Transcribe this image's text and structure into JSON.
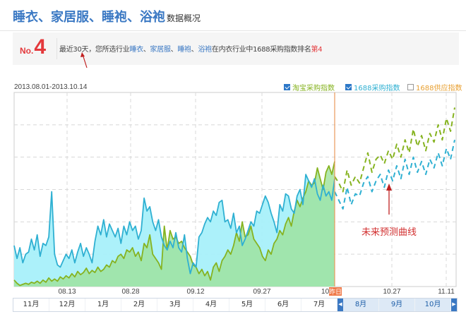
{
  "title": {
    "main": "睡衣、家居服、睡袍、浴袍",
    "suffix": "数据概况"
  },
  "rank": {
    "no_label": "No.",
    "number": "4",
    "text_prefix": "最近30天，您所选行业",
    "cats": [
      "睡衣",
      "家居服",
      "睡袍",
      "浴袍"
    ],
    "text_mid": "在内衣行业中1688采购指数排名",
    "rank_text": "第4"
  },
  "date_range": "2013.08.01-2013.10.14",
  "legend": [
    {
      "label": "淘宝采购指数",
      "checked": true,
      "color": "#86b320"
    },
    {
      "label": "1688采购指数",
      "checked": true,
      "color": "#2fb0d2"
    },
    {
      "label": "1688供应指数",
      "checked": false,
      "color": "#e8a032"
    }
  ],
  "annotation": "未来预测曲线",
  "colors": {
    "green_line": "#86b320",
    "green_fill": "#9ee29a",
    "blue_line": "#2fb0d2",
    "blue_fill": "#a8f0fa",
    "today_line": "#e89a5c",
    "grid": "#d8d8d8"
  },
  "timeline": [
    "11月",
    "12月",
    "1月",
    "2月",
    "3月",
    "4月",
    "5月",
    "6月",
    "7月",
    "8月",
    "9月",
    "10月"
  ],
  "timeline_selected": [
    "8月",
    "9月",
    "10月"
  ],
  "chart_data": {
    "type": "line",
    "x_ticks": [
      "08.13",
      "08.28",
      "09.12",
      "09.27",
      "10.",
      "10.27",
      "11.11"
    ],
    "today_label": "昨日",
    "grid": true,
    "legend_position": "top-right",
    "series": [
      {
        "name": "淘宝采购指数",
        "style": "area",
        "values": [
          6,
          3,
          1,
          2,
          3,
          2,
          4,
          3,
          5,
          3,
          6,
          4,
          8,
          5,
          7,
          5,
          9,
          7,
          10,
          8,
          12,
          9,
          14,
          11,
          13,
          17,
          12,
          15,
          13,
          18,
          14,
          16,
          20,
          18,
          24,
          22,
          28,
          30,
          26,
          34,
          32,
          36,
          28,
          32,
          24,
          40,
          36,
          48,
          30,
          26,
          22,
          16,
          56,
          34,
          52,
          44,
          46,
          40,
          42,
          36,
          32,
          28,
          20,
          18,
          12,
          16,
          10,
          14,
          6,
          18,
          22,
          14,
          24,
          28,
          34,
          30,
          38,
          50,
          42,
          60,
          46,
          48,
          56,
          44,
          40,
          36,
          28,
          24,
          34,
          30,
          40,
          44,
          52,
          48,
          58,
          64,
          56,
          70,
          80,
          74,
          82,
          88,
          98,
          94,
          96,
          110,
          100,
          90,
          106,
          112,
          104,
          116
        ]
      },
      {
        "name": "1688采购指数",
        "style": "area",
        "values": [
          38,
          26,
          36,
          22,
          30,
          32,
          44,
          34,
          48,
          28,
          40,
          38,
          46,
          88,
          30,
          20,
          18,
          24,
          30,
          26,
          34,
          22,
          32,
          40,
          28,
          36,
          30,
          22,
          42,
          56,
          48,
          62,
          46,
          58,
          52,
          46,
          54,
          40,
          56,
          48,
          60,
          52,
          56,
          44,
          52,
          82,
          70,
          74,
          60,
          52,
          62,
          46,
          38,
          34,
          42,
          36,
          50,
          36,
          32,
          48,
          26,
          12,
          22,
          18,
          46,
          50,
          58,
          64,
          60,
          70,
          66,
          78,
          80,
          60,
          62,
          54,
          68,
          50,
          56,
          38,
          44,
          52,
          60,
          56,
          70,
          68,
          76,
          84,
          78,
          68,
          60,
          50,
          76,
          70,
          86,
          84,
          72,
          68,
          84,
          90,
          76,
          104,
          98,
          92,
          100,
          86,
          80,
          94,
          84,
          88,
          80,
          100
        ]
      },
      {
        "name": "淘宝采购指数预测",
        "style": "dashed",
        "values": [
          102,
          96,
          88,
          108,
          94,
          102,
          96,
          110,
          124,
          106,
          118,
          122,
          114,
          126,
          118,
          132,
          120,
          136,
          124,
          146,
          130,
          140,
          126,
          142,
          134,
          150,
          136,
          156,
          144,
          166
        ]
      },
      {
        "name": "1688采购指数预测",
        "style": "dashed",
        "values": [
          88,
          80,
          72,
          92,
          76,
          86,
          84,
          96,
          102,
          88,
          98,
          104,
          92,
          108,
          98,
          112,
          100,
          118,
          104,
          120,
          106,
          116,
          104,
          118,
          110,
          124,
          112,
          128,
          118,
          136
        ]
      }
    ]
  }
}
